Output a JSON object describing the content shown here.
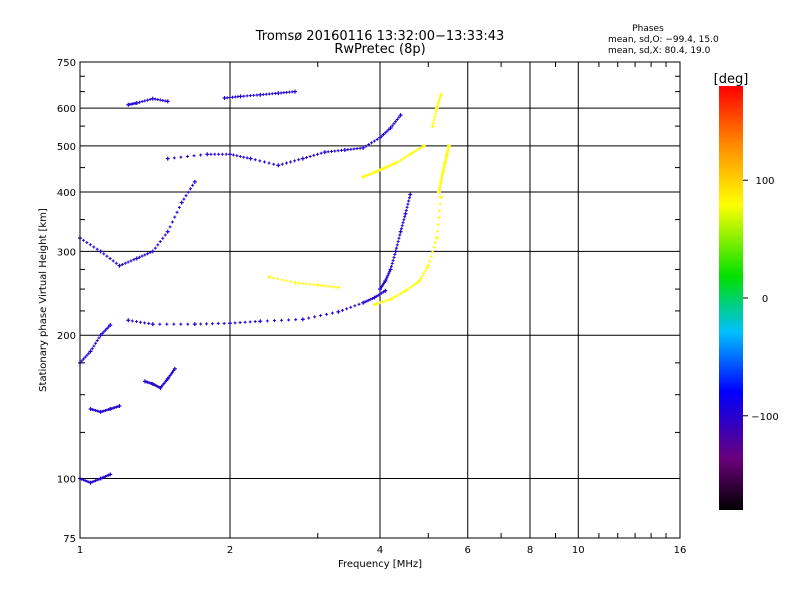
{
  "chart_data": {
    "type": "scatter",
    "title": "Tromsø 20160116 13:32:00−13:33:43",
    "subtitle": "RwPretec (8p)",
    "xlabel": "Frequency [MHz]",
    "ylabel": "Stationary phase Virtual Height [km]",
    "x_scale": "log",
    "y_scale": "log",
    "xlim": [
      1,
      16
    ],
    "ylim": [
      75,
      750
    ],
    "x_ticks": [
      "1",
      "2",
      "4",
      "6",
      "8",
      "10",
      "16"
    ],
    "y_ticks": [
      "75",
      "100",
      "200",
      "300",
      "400",
      "500",
      "600",
      "750"
    ],
    "grid": true,
    "stats": {
      "heading": "Phases",
      "line1": "mean, sd,O: −99.4, 15.0",
      "line2": "mean, sd,X:  80.4, 19.0"
    },
    "colorbar": {
      "label": "[deg]",
      "range": [
        -180,
        180
      ],
      "ticks": [
        "100",
        "0",
        "−100"
      ],
      "colormap": "rainbow (black-purple-blue-cyan-green-yellow-orange-red)"
    },
    "series": [
      {
        "name": "O",
        "color_phase": -100,
        "traces": [
          {
            "x": [
              1.25,
              1.4,
              1.7,
              2.0,
              2.3,
              2.8,
              3.3,
              3.7,
              3.9,
              4.1
            ],
            "y": [
              215,
              211,
              211,
              212,
              214,
              216,
              224,
              234,
              240,
              248
            ]
          },
          {
            "x": [
              4.0,
              4.1,
              4.2,
              4.3,
              4.4,
              4.5,
              4.6
            ],
            "y": [
              250,
              260,
              275,
              300,
              330,
              360,
              395
            ]
          },
          {
            "x": [
              1.5,
              1.8,
              2.0,
              2.2,
              2.5,
              2.8,
              3.1,
              3.4,
              3.7,
              4.0,
              4.2,
              4.4
            ],
            "y": [
              470,
              480,
              480,
              470,
              455,
              470,
              485,
              490,
              495,
              520,
              545,
              580
            ]
          },
          {
            "x": [
              1.0,
              1.1,
              1.2,
              1.3,
              1.4,
              1.5,
              1.6,
              1.7
            ],
            "y": [
              320,
              300,
              280,
              290,
              300,
              330,
              380,
              420
            ]
          },
          {
            "x": [
              1.0,
              1.05,
              1.1,
              1.15
            ],
            "y": [
              175,
              185,
              200,
              210
            ]
          },
          {
            "x": [
              1.35,
              1.4,
              1.45,
              1.5,
              1.55
            ],
            "y": [
              160,
              158,
              155,
              162,
              170
            ]
          },
          {
            "x": [
              1.0,
              1.05,
              1.1,
              1.15
            ],
            "y": [
              100,
              98,
              100,
              102
            ]
          },
          {
            "x": [
              1.05,
              1.1,
              1.15,
              1.2
            ],
            "y": [
              140,
              138,
              140,
              142
            ]
          },
          {
            "x": [
              1.25,
              1.3,
              1.4,
              1.5
            ],
            "y": [
              610,
              615,
              628,
              620
            ]
          },
          {
            "x": [
              1.95,
              2.1,
              2.3,
              2.5,
              2.7
            ],
            "y": [
              630,
              635,
              640,
              645,
              650
            ]
          }
        ]
      },
      {
        "name": "X",
        "color_phase": 80,
        "traces": [
          {
            "x": [
              3.9,
              4.2,
              4.5,
              4.8,
              5.0,
              5.2,
              5.3
            ],
            "y": [
              232,
              238,
              248,
              260,
              280,
              320,
              390
            ]
          },
          {
            "x": [
              5.25,
              5.3,
              5.35,
              5.4,
              5.45,
              5.5
            ],
            "y": [
              400,
              420,
              440,
              460,
              480,
              500
            ]
          },
          {
            "x": [
              3.7,
              3.9,
              4.1,
              4.3,
              4.6,
              4.9
            ],
            "y": [
              430,
              440,
              450,
              460,
              480,
              500
            ]
          },
          {
            "x": [
              2.4,
              2.7,
              3.0,
              3.3
            ],
            "y": [
              265,
              258,
              255,
              252
            ]
          },
          {
            "x": [
              5.1,
              5.2,
              5.3
            ],
            "y": [
              550,
              600,
              640
            ]
          }
        ]
      }
    ]
  }
}
